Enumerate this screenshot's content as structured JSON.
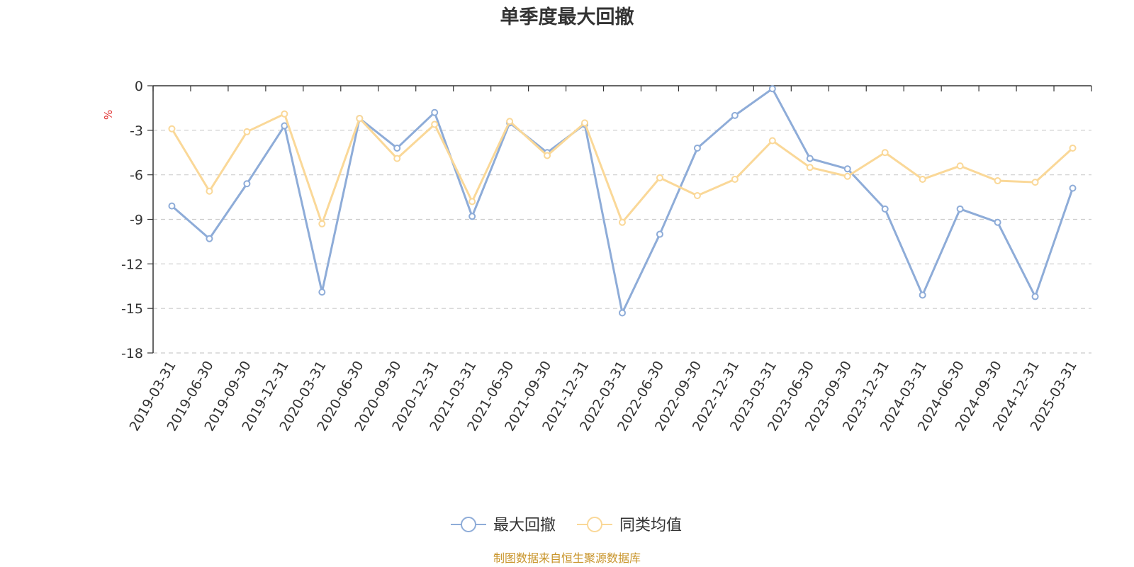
{
  "chart_data": {
    "type": "line",
    "title": "单季度最大回撤",
    "ylabel": "%",
    "xlabel": "",
    "ylim": [
      -18,
      0
    ],
    "yticks": [
      "0",
      "-3",
      "-6",
      "-9",
      "-12",
      "-15",
      "-18"
    ],
    "ytick_values": [
      0,
      -3,
      -6,
      -9,
      -12,
      -15,
      -18
    ],
    "grid": true,
    "legend_position": "bottom",
    "categories": [
      "2019-03-31",
      "2019-06-30",
      "2019-09-30",
      "2019-12-31",
      "2020-03-31",
      "2020-06-30",
      "2020-09-30",
      "2020-12-31",
      "2021-03-31",
      "2021-06-30",
      "2021-09-30",
      "2021-12-31",
      "2022-03-31",
      "2022-06-30",
      "2022-09-30",
      "2022-12-31",
      "2023-03-31",
      "2023-06-30",
      "2023-09-30",
      "2023-12-31",
      "2024-03-31",
      "2024-06-30",
      "2024-09-30",
      "2024-12-31",
      "2025-03-31"
    ],
    "series": [
      {
        "name": "最大回撤",
        "color": "#8eacd8",
        "values": [
          -8.1,
          -10.3,
          -6.6,
          -2.7,
          -13.9,
          -2.2,
          -4.2,
          -1.8,
          -8.8,
          -2.5,
          -4.5,
          -2.6,
          -15.3,
          -10.0,
          -4.2,
          -2.0,
          -0.2,
          -4.9,
          -5.6,
          -8.3,
          -14.1,
          -8.3,
          -9.2,
          -14.2,
          -6.9
        ]
      },
      {
        "name": "同类均值",
        "color": "#fad898",
        "values": [
          -2.9,
          -7.1,
          -3.1,
          -1.9,
          -9.3,
          -2.2,
          -4.9,
          -2.6,
          -7.8,
          -2.4,
          -4.7,
          -2.5,
          -9.2,
          -6.2,
          -7.4,
          -6.3,
          -3.7,
          -5.5,
          -6.1,
          -4.5,
          -6.3,
          -5.4,
          -6.4,
          -6.5,
          -4.2
        ]
      }
    ],
    "source": "制图数据来自恒生聚源数据库"
  }
}
